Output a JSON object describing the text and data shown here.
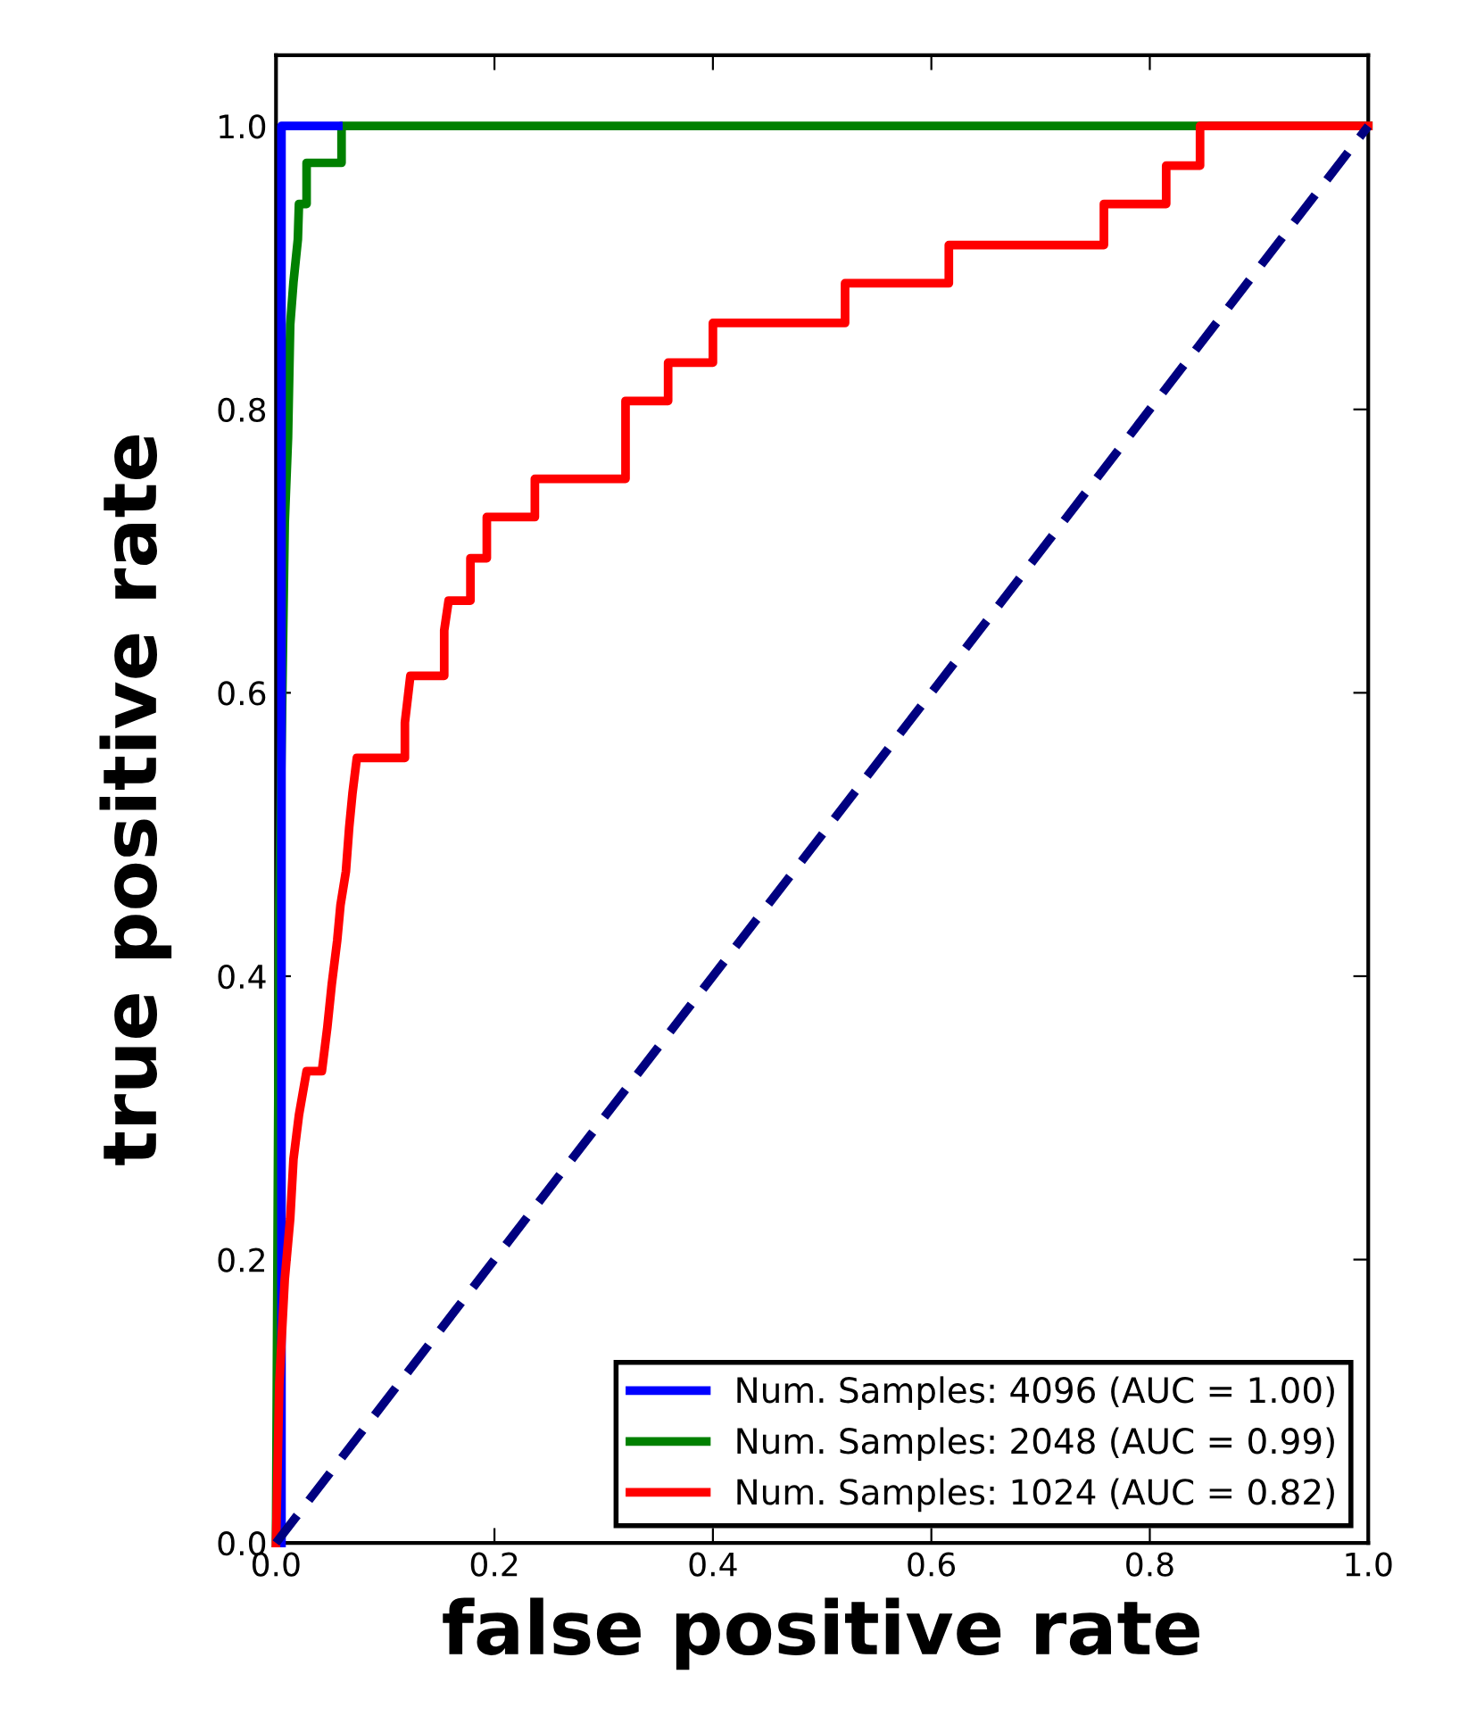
{
  "chart_data": {
    "type": "line",
    "xlabel": "false positive rate",
    "ylabel": "true positive rate",
    "xlim": [
      0,
      1.0
    ],
    "ylim": [
      0,
      1.05
    ],
    "xticks": [
      {
        "value": 0,
        "label": "0.0"
      },
      {
        "value": 0.2,
        "label": "0.2"
      },
      {
        "value": 0.4,
        "label": "0.4"
      },
      {
        "value": 0.6,
        "label": "0.6"
      },
      {
        "value": 0.8,
        "label": "0.8"
      },
      {
        "value": 1.0,
        "label": "1.0"
      }
    ],
    "yticks": [
      {
        "value": 0,
        "label": "0.0"
      },
      {
        "value": 0.2,
        "label": "0.2"
      },
      {
        "value": 0.4,
        "label": "0.4"
      },
      {
        "value": 0.6,
        "label": "0.6"
      },
      {
        "value": 0.8,
        "label": "0.8"
      },
      {
        "value": 1.0,
        "label": "1.0"
      }
    ],
    "grid": false,
    "legend": "bottom right",
    "line_style": "solid",
    "marker": "none",
    "series": [
      {
        "name": "Num. Samples: 4096 (AUC = 1.00)",
        "color": "#0000ff",
        "x": [
          0.005,
          0.005,
          0.057
        ],
        "values": [
          0,
          1.0,
          1.0
        ]
      },
      {
        "name": "Num. Samples: 2048 (AUC = 0.99)",
        "color": "#008000",
        "x": [
          0,
          0.003,
          0.008,
          0.011,
          0.013,
          0.016,
          0.02,
          0.021,
          0.028,
          0.028,
          0.06,
          0.06,
          1.0
        ],
        "values": [
          0,
          0.45,
          0.72,
          0.78,
          0.86,
          0.89,
          0.92,
          0.945,
          0.945,
          0.974,
          0.974,
          1.0,
          1.0
        ]
      },
      {
        "name": "Num. Samples: 1024 (AUC = 0.82)",
        "color": "#ff0000",
        "x": [
          0,
          0.003,
          0.008,
          0.013,
          0.016,
          0.021,
          0.028,
          0.042,
          0.047,
          0.051,
          0.056,
          0.059,
          0.064,
          0.067,
          0.07,
          0.074,
          0.118,
          0.118,
          0.123,
          0.154,
          0.154,
          0.158,
          0.178,
          0.178,
          0.193,
          0.193,
          0.237,
          0.237,
          0.32,
          0.32,
          0.359,
          0.359,
          0.4,
          0.4,
          0.521,
          0.521,
          0.616,
          0.616,
          0.758,
          0.758,
          0.815,
          0.815,
          0.846,
          0.846,
          1.0
        ],
        "values": [
          0,
          0.112,
          0.186,
          0.229,
          0.271,
          0.302,
          0.333,
          0.333,
          0.364,
          0.394,
          0.425,
          0.45,
          0.474,
          0.505,
          0.529,
          0.554,
          0.554,
          0.579,
          0.612,
          0.612,
          0.644,
          0.665,
          0.665,
          0.695,
          0.695,
          0.724,
          0.724,
          0.751,
          0.751,
          0.806,
          0.806,
          0.833,
          0.833,
          0.861,
          0.861,
          0.889,
          0.889,
          0.916,
          0.916,
          0.945,
          0.945,
          0.972,
          0.972,
          1.0,
          1.0
        ]
      },
      {
        "color": "#000080",
        "line_style": "dashed",
        "x": [
          0,
          1.0
        ],
        "values": [
          0,
          1.0
        ]
      }
    ]
  }
}
